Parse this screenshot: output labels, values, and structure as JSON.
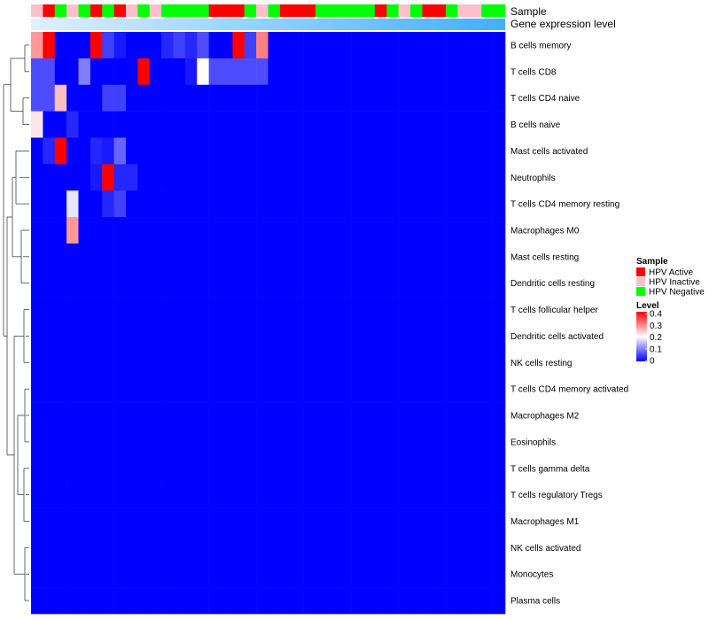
{
  "chart_data": {
    "type": "heatmap",
    "rows": [
      "B cells memory",
      "T cells CD8",
      "T cells CD4 naive",
      "B cells naive",
      "Mast cells activated",
      "Neutrophils",
      "T cells CD4 memory resting",
      "Macrophages M0",
      "Mast cells resting",
      "Dendritic cells resting",
      "T cells follicular helper",
      "Dendritic cells activated",
      "NK cells resting",
      "T cells CD4 memory activated",
      "Macrophages M2",
      "Eosinophils",
      "T cells gamma delta",
      "T cells regulatory  Tregs",
      "Macrophages M1",
      "NK cells activated",
      "Monocytes",
      "Plasma cells"
    ],
    "annotations": {
      "sample_label": "Sample",
      "gene_label": "Gene expression level",
      "samples": [
        "HPV Inactive",
        "HPV Active",
        "HPV Negative",
        "HPV Inactive",
        "HPV Negative",
        "HPV Active",
        "HPV Negative",
        "HPV Active",
        "HPV Inactive",
        "HPV Negative",
        "HPV Inactive",
        "HPV Negative",
        "HPV Negative",
        "HPV Negative",
        "HPV Negative",
        "HPV Active",
        "HPV Active",
        "HPV Active",
        "HPV Negative",
        "HPV Inactive",
        "HPV Negative",
        "HPV Active",
        "HPV Active",
        "HPV Active",
        "HPV Negative",
        "HPV Negative",
        "HPV Negative",
        "HPV Negative",
        "HPV Negative",
        "HPV Active",
        "HPV Negative",
        "HPV Inactive",
        "HPV Negative",
        "HPV Active",
        "HPV Active",
        "HPV Negative",
        "HPV Inactive",
        "HPV Inactive",
        "HPV Negative",
        "HPV Negative"
      ],
      "gene_expression_range": [
        0,
        1
      ]
    },
    "values": [
      [
        0.28,
        0.4,
        0.0,
        0.0,
        0.0,
        0.4,
        0.05,
        0.02,
        0.0,
        0.0,
        0.0,
        0.03,
        0.05,
        0.03,
        0.06,
        0.0,
        0.0,
        0.4,
        0.05,
        0.3,
        0.0,
        0.0,
        0.0,
        0.0,
        0.0,
        0.0,
        0.0,
        0.0,
        0.0,
        0.0,
        0.0,
        0.0,
        0.0,
        0.0,
        0.0,
        0.0,
        0.0,
        0.0,
        0.0,
        0.0
      ],
      [
        0.06,
        0.06,
        0.0,
        0.0,
        0.1,
        0.0,
        0.0,
        0.0,
        0.0,
        0.4,
        0.0,
        0.0,
        0.0,
        0.02,
        0.2,
        0.06,
        0.06,
        0.06,
        0.06,
        0.06,
        0.0,
        0.0,
        0.0,
        0.0,
        0.0,
        0.0,
        0.0,
        0.0,
        0.0,
        0.0,
        0.0,
        0.0,
        0.0,
        0.0,
        0.0,
        0.0,
        0.0,
        0.0,
        0.0,
        0.0
      ],
      [
        0.06,
        0.06,
        0.25,
        0.0,
        0.0,
        0.0,
        0.05,
        0.05,
        0.0,
        0.0,
        0.0,
        0.0,
        0.0,
        0.0,
        0.0,
        0.0,
        0.0,
        0.0,
        0.0,
        0.0,
        0.0,
        0.0,
        0.0,
        0.0,
        0.0,
        0.0,
        0.0,
        0.0,
        0.0,
        0.0,
        0.0,
        0.0,
        0.0,
        0.0,
        0.0,
        0.0,
        0.0,
        0.0,
        0.0,
        0.0
      ],
      [
        0.22,
        0.0,
        0.0,
        0.03,
        0.0,
        0.0,
        0.0,
        0.0,
        0.0,
        0.0,
        0.0,
        0.0,
        0.0,
        0.0,
        0.0,
        0.0,
        0.0,
        0.0,
        0.0,
        0.0,
        0.0,
        0.0,
        0.0,
        0.0,
        0.0,
        0.0,
        0.0,
        0.0,
        0.0,
        0.0,
        0.0,
        0.0,
        0.0,
        0.0,
        0.0,
        0.0,
        0.0,
        0.0,
        0.0,
        0.0
      ],
      [
        0.0,
        0.03,
        0.4,
        0.0,
        0.0,
        0.03,
        0.02,
        0.08,
        0.0,
        0.0,
        0.0,
        0.0,
        0.0,
        0.0,
        0.0,
        0.0,
        0.0,
        0.0,
        0.0,
        0.0,
        0.0,
        0.0,
        0.0,
        0.0,
        0.0,
        0.0,
        0.0,
        0.0,
        0.0,
        0.0,
        0.0,
        0.0,
        0.0,
        0.0,
        0.0,
        0.0,
        0.0,
        0.0,
        0.0,
        0.0
      ],
      [
        0.0,
        0.0,
        0.0,
        0.0,
        0.0,
        0.02,
        0.4,
        0.03,
        0.03,
        0.0,
        0.0,
        0.0,
        0.0,
        0.0,
        0.0,
        0.0,
        0.0,
        0.0,
        0.0,
        0.0,
        0.0,
        0.0,
        0.0,
        0.0,
        0.0,
        0.0,
        0.0,
        0.0,
        0.0,
        0.0,
        0.0,
        0.0,
        0.0,
        0.0,
        0.0,
        0.0,
        0.0,
        0.0,
        0.0,
        0.0
      ],
      [
        0.0,
        0.0,
        0.0,
        0.18,
        0.0,
        0.0,
        0.03,
        0.05,
        0.0,
        0.0,
        0.0,
        0.0,
        0.0,
        0.0,
        0.0,
        0.0,
        0.0,
        0.0,
        0.0,
        0.0,
        0.0,
        0.0,
        0.0,
        0.0,
        0.0,
        0.0,
        0.0,
        0.0,
        0.0,
        0.0,
        0.0,
        0.0,
        0.0,
        0.0,
        0.0,
        0.0,
        0.0,
        0.0,
        0.0,
        0.0
      ],
      [
        0.0,
        0.0,
        0.0,
        0.28,
        0.0,
        0.0,
        0.0,
        0.0,
        0.0,
        0.0,
        0.0,
        0.0,
        0.0,
        0.0,
        0.0,
        0.0,
        0.0,
        0.0,
        0.0,
        0.0,
        0.0,
        0.0,
        0.0,
        0.0,
        0.0,
        0.0,
        0.0,
        0.0,
        0.0,
        0.0,
        0.0,
        0.0,
        0.0,
        0.0,
        0.0,
        0.0,
        0.0,
        0.0,
        0.0,
        0.0
      ],
      [
        0.0,
        0.0,
        0.0,
        0.0,
        0.0,
        0.0,
        0.0,
        0.0,
        0.0,
        0.0,
        0.0,
        0.0,
        0.0,
        0.0,
        0.0,
        0.0,
        0.0,
        0.0,
        0.0,
        0.0,
        0.0,
        0.0,
        0.0,
        0.0,
        0.0,
        0.0,
        0.0,
        0.0,
        0.0,
        0.0,
        0.0,
        0.0,
        0.0,
        0.0,
        0.0,
        0.0,
        0.0,
        0.0,
        0.0,
        0.0
      ],
      [
        0.0,
        0.0,
        0.0,
        0.0,
        0.0,
        0.0,
        0.0,
        0.0,
        0.0,
        0.0,
        0.0,
        0.0,
        0.0,
        0.0,
        0.0,
        0.0,
        0.0,
        0.0,
        0.0,
        0.0,
        0.0,
        0.0,
        0.0,
        0.0,
        0.0,
        0.0,
        0.0,
        0.0,
        0.0,
        0.0,
        0.0,
        0.0,
        0.0,
        0.0,
        0.0,
        0.0,
        0.0,
        0.0,
        0.0,
        0.0
      ],
      [
        0.0,
        0.0,
        0.0,
        0.0,
        0.0,
        0.0,
        0.0,
        0.0,
        0.0,
        0.0,
        0.0,
        0.0,
        0.0,
        0.0,
        0.0,
        0.0,
        0.0,
        0.0,
        0.0,
        0.0,
        0.0,
        0.0,
        0.0,
        0.0,
        0.0,
        0.0,
        0.0,
        0.0,
        0.0,
        0.0,
        0.0,
        0.0,
        0.0,
        0.0,
        0.0,
        0.0,
        0.0,
        0.0,
        0.0,
        0.0
      ],
      [
        0.0,
        0.0,
        0.0,
        0.0,
        0.0,
        0.0,
        0.0,
        0.0,
        0.0,
        0.0,
        0.0,
        0.0,
        0.0,
        0.0,
        0.0,
        0.0,
        0.0,
        0.0,
        0.0,
        0.0,
        0.0,
        0.0,
        0.0,
        0.0,
        0.0,
        0.0,
        0.0,
        0.0,
        0.0,
        0.0,
        0.0,
        0.0,
        0.0,
        0.0,
        0.0,
        0.0,
        0.0,
        0.0,
        0.0,
        0.0
      ],
      [
        0.0,
        0.0,
        0.0,
        0.0,
        0.0,
        0.0,
        0.0,
        0.0,
        0.0,
        0.0,
        0.0,
        0.0,
        0.0,
        0.0,
        0.0,
        0.0,
        0.0,
        0.0,
        0.0,
        0.0,
        0.0,
        0.0,
        0.0,
        0.0,
        0.0,
        0.0,
        0.0,
        0.0,
        0.0,
        0.0,
        0.0,
        0.0,
        0.0,
        0.0,
        0.0,
        0.0,
        0.0,
        0.0,
        0.0,
        0.0
      ],
      [
        0.0,
        0.0,
        0.0,
        0.0,
        0.0,
        0.0,
        0.0,
        0.0,
        0.0,
        0.0,
        0.0,
        0.0,
        0.0,
        0.0,
        0.0,
        0.0,
        0.0,
        0.0,
        0.0,
        0.0,
        0.0,
        0.0,
        0.0,
        0.0,
        0.0,
        0.0,
        0.0,
        0.0,
        0.0,
        0.0,
        0.0,
        0.0,
        0.0,
        0.0,
        0.0,
        0.0,
        0.0,
        0.0,
        0.0,
        0.0
      ],
      [
        0.0,
        0.0,
        0.0,
        0.0,
        0.0,
        0.0,
        0.0,
        0.0,
        0.0,
        0.0,
        0.0,
        0.0,
        0.0,
        0.0,
        0.0,
        0.0,
        0.0,
        0.0,
        0.0,
        0.0,
        0.0,
        0.0,
        0.0,
        0.0,
        0.0,
        0.0,
        0.0,
        0.0,
        0.0,
        0.0,
        0.0,
        0.0,
        0.0,
        0.0,
        0.0,
        0.0,
        0.0,
        0.0,
        0.0,
        0.0
      ],
      [
        0.0,
        0.0,
        0.0,
        0.0,
        0.0,
        0.0,
        0.0,
        0.0,
        0.0,
        0.0,
        0.0,
        0.0,
        0.0,
        0.0,
        0.0,
        0.0,
        0.0,
        0.0,
        0.0,
        0.0,
        0.0,
        0.0,
        0.0,
        0.0,
        0.0,
        0.0,
        0.0,
        0.0,
        0.0,
        0.0,
        0.0,
        0.0,
        0.0,
        0.0,
        0.0,
        0.0,
        0.0,
        0.0,
        0.0,
        0.0
      ],
      [
        0.0,
        0.0,
        0.0,
        0.0,
        0.0,
        0.0,
        0.0,
        0.0,
        0.0,
        0.0,
        0.0,
        0.0,
        0.0,
        0.0,
        0.0,
        0.0,
        0.0,
        0.0,
        0.0,
        0.0,
        0.0,
        0.0,
        0.0,
        0.0,
        0.0,
        0.0,
        0.0,
        0.0,
        0.0,
        0.0,
        0.0,
        0.0,
        0.0,
        0.0,
        0.0,
        0.0,
        0.0,
        0.0,
        0.0,
        0.0
      ],
      [
        0.0,
        0.0,
        0.0,
        0.0,
        0.0,
        0.0,
        0.0,
        0.0,
        0.0,
        0.0,
        0.0,
        0.0,
        0.0,
        0.0,
        0.0,
        0.0,
        0.0,
        0.0,
        0.0,
        0.0,
        0.0,
        0.0,
        0.0,
        0.0,
        0.0,
        0.0,
        0.0,
        0.0,
        0.0,
        0.0,
        0.0,
        0.0,
        0.0,
        0.0,
        0.0,
        0.0,
        0.0,
        0.0,
        0.0,
        0.0
      ],
      [
        0.0,
        0.0,
        0.0,
        0.0,
        0.0,
        0.0,
        0.0,
        0.0,
        0.0,
        0.0,
        0.0,
        0.0,
        0.0,
        0.0,
        0.0,
        0.0,
        0.0,
        0.0,
        0.0,
        0.0,
        0.0,
        0.0,
        0.0,
        0.0,
        0.0,
        0.0,
        0.0,
        0.0,
        0.0,
        0.0,
        0.0,
        0.0,
        0.0,
        0.0,
        0.0,
        0.0,
        0.0,
        0.0,
        0.0,
        0.0
      ],
      [
        0.0,
        0.0,
        0.0,
        0.0,
        0.0,
        0.0,
        0.0,
        0.0,
        0.0,
        0.0,
        0.0,
        0.0,
        0.0,
        0.0,
        0.0,
        0.0,
        0.0,
        0.0,
        0.0,
        0.0,
        0.0,
        0.0,
        0.0,
        0.0,
        0.0,
        0.0,
        0.0,
        0.0,
        0.0,
        0.0,
        0.0,
        0.0,
        0.0,
        0.0,
        0.0,
        0.0,
        0.0,
        0.0,
        0.0,
        0.0
      ],
      [
        0.0,
        0.0,
        0.0,
        0.0,
        0.0,
        0.0,
        0.0,
        0.0,
        0.0,
        0.0,
        0.0,
        0.0,
        0.0,
        0.0,
        0.0,
        0.0,
        0.0,
        0.0,
        0.0,
        0.0,
        0.0,
        0.0,
        0.0,
        0.0,
        0.0,
        0.0,
        0.0,
        0.0,
        0.0,
        0.0,
        0.0,
        0.0,
        0.0,
        0.0,
        0.0,
        0.0,
        0.0,
        0.0,
        0.0,
        0.0
      ],
      [
        0.0,
        0.0,
        0.0,
        0.0,
        0.0,
        0.0,
        0.0,
        0.0,
        0.0,
        0.0,
        0.0,
        0.0,
        0.0,
        0.0,
        0.0,
        0.0,
        0.0,
        0.0,
        0.0,
        0.0,
        0.0,
        0.0,
        0.0,
        0.0,
        0.0,
        0.0,
        0.0,
        0.0,
        0.0,
        0.0,
        0.0,
        0.0,
        0.0,
        0.0,
        0.0,
        0.0,
        0.0,
        0.0,
        0.0,
        0.0
      ]
    ],
    "legend": {
      "sample_title": "Sample",
      "sample_entries": [
        {
          "label": "HPV Active",
          "color": "#ff0000"
        },
        {
          "label": "HPV Inactive",
          "color": "#ffc0cb"
        },
        {
          "label": "HPV Negative",
          "color": "#00ff00"
        }
      ],
      "level_title": "Level",
      "level_ticks": [
        "0.4",
        "0.3",
        "0.2",
        "0.1",
        "0"
      ],
      "level_range": [
        0,
        0.4
      ]
    },
    "colors": {
      "low": "#0000ff",
      "mid": "#ffffff",
      "high": "#ff0000",
      "gene_low": "#e0f0ff",
      "gene_high": "#40b0ff"
    }
  }
}
